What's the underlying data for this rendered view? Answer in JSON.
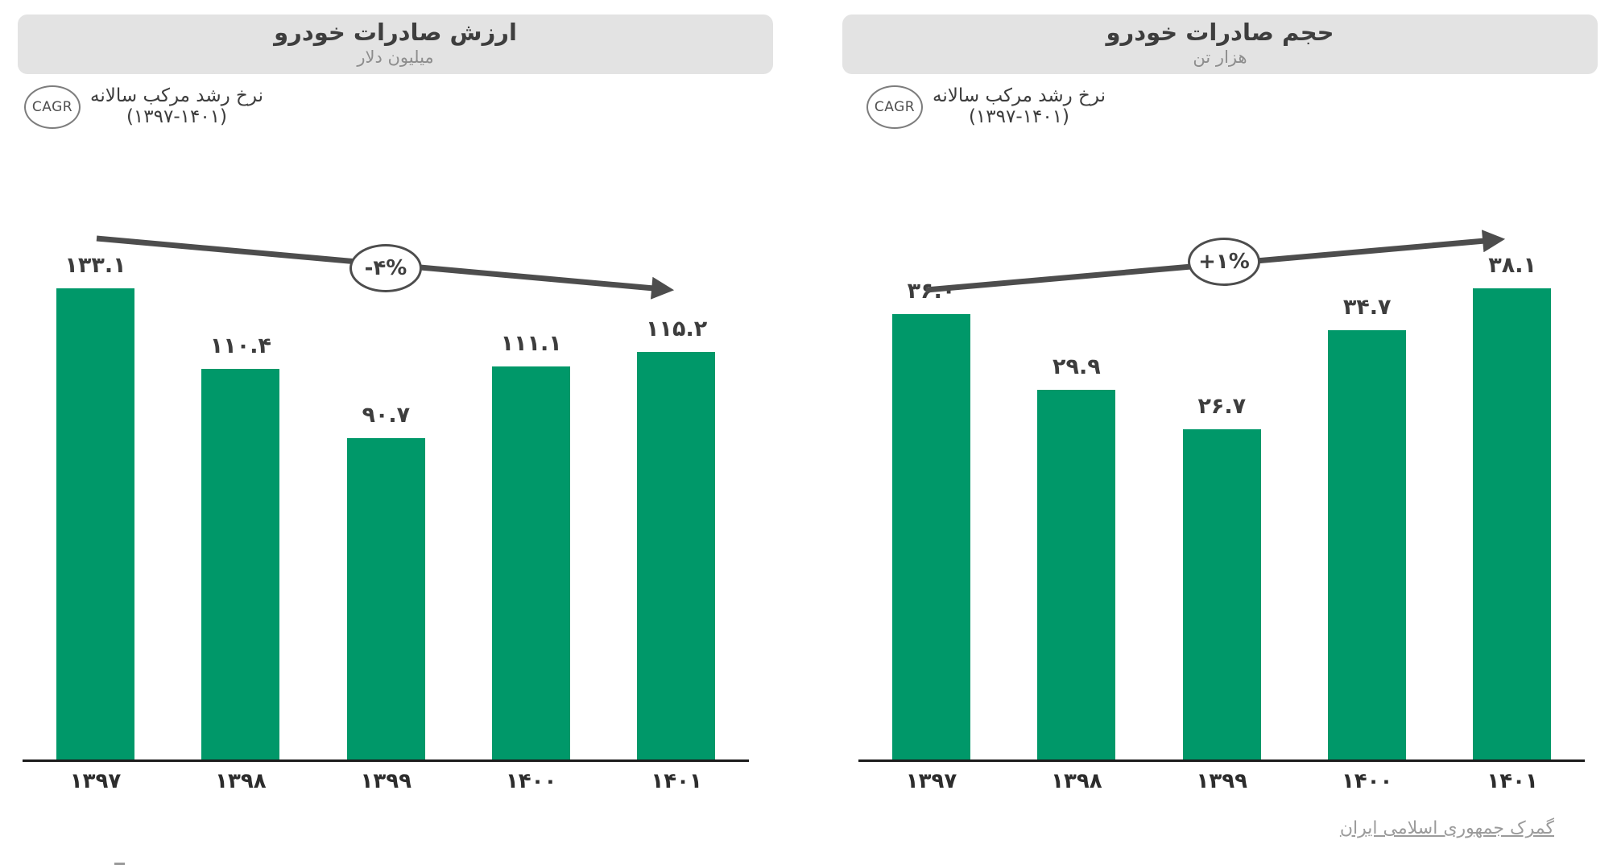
{
  "page": {
    "source_link": "گمرک جمهوری اسلامی ایران"
  },
  "chart_data": [
    {
      "type": "bar",
      "title": "ارزش صادرات خودرو",
      "subtitle": "میلیون دلار",
      "categories": [
        "۱۳۹۷",
        "۱۳۹۸",
        "۱۳۹۹",
        "۱۴۰۰",
        "۱۴۰۱"
      ],
      "values": [
        133.1,
        110.4,
        90.7,
        111.1,
        115.2
      ],
      "value_labels": [
        "۱۳۳.۱",
        "۱۱۰.۴",
        "۹۰.۷",
        "۱۱۱.۱",
        "۱۱۵.۲"
      ],
      "bar_color": "#009869",
      "ylim": [
        0,
        140
      ],
      "grid": false,
      "legend": null,
      "cagr": {
        "badge": "CAGR",
        "label_line1": "نرخ رشد مرکب سالانه",
        "label_line2": "(۱۳۹۷-۱۴۰۱)",
        "value": "-۴%",
        "trend": "down"
      }
    },
    {
      "type": "bar",
      "title": "حجم صادرات خودرو",
      "subtitle": "هزار تن",
      "categories": [
        "۱۳۹۷",
        "۱۳۹۸",
        "۱۳۹۹",
        "۱۴۰۰",
        "۱۴۰۱"
      ],
      "values": [
        36.0,
        29.9,
        26.7,
        34.7,
        38.1
      ],
      "value_labels": [
        "۳۶.۰",
        "۲۹.۹",
        "۲۶.۷",
        "۳۴.۷",
        "۳۸.۱"
      ],
      "bar_color": "#009869",
      "ylim": [
        0,
        40
      ],
      "grid": false,
      "legend": null,
      "cagr": {
        "badge": "CAGR",
        "label_line1": "نرخ رشد مرکب سالانه",
        "label_line2": "(۱۳۹۷-۱۴۰۱)",
        "value": "+۱%",
        "trend": "up"
      }
    }
  ],
  "colors": {
    "bar_green": "#009869",
    "arrow_gray": "#4d4d4d",
    "banner_gray": "#e3e3e3",
    "axis_black": "#1c1c1c",
    "text_dark": "#3d3d3d",
    "text_muted": "#8d8d8d"
  }
}
